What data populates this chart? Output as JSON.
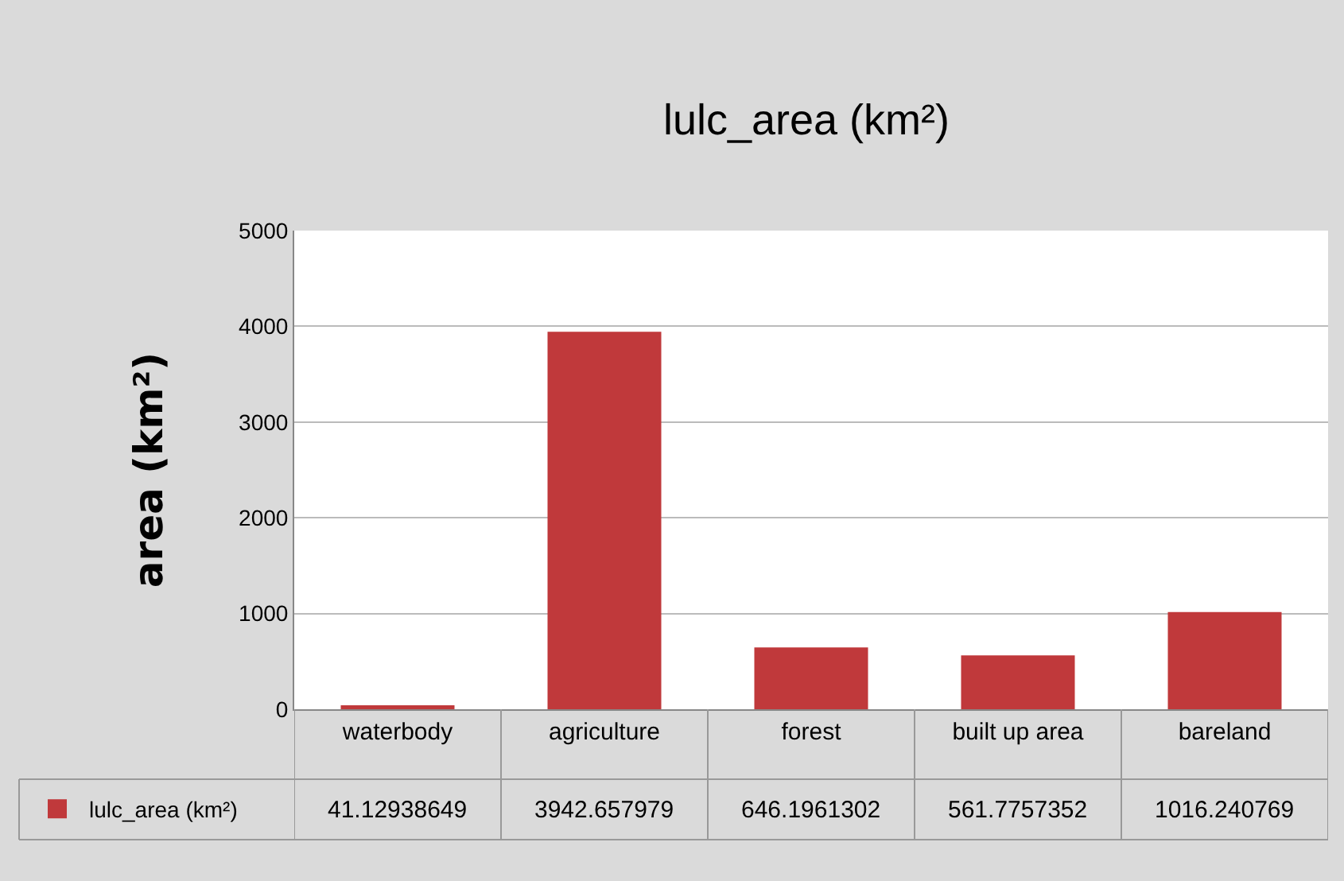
{
  "chart_data": {
    "type": "bar",
    "title": "lulc_area (km²)",
    "ylabel": "area (km²)",
    "categories": [
      "waterbody",
      "agriculture",
      "forest",
      "built up area",
      "bareland"
    ],
    "series": [
      {
        "name": "lulc_area (km²)",
        "color": "#c0393b",
        "values": [
          41.12938649,
          3942.657979,
          646.1961302,
          561.7757352,
          1016.240769
        ]
      }
    ],
    "ylim": [
      0,
      5000
    ],
    "yticks": [
      0,
      1000,
      2000,
      3000,
      4000,
      5000
    ],
    "grid": "y",
    "legend": "bottom",
    "data_labels": true
  }
}
